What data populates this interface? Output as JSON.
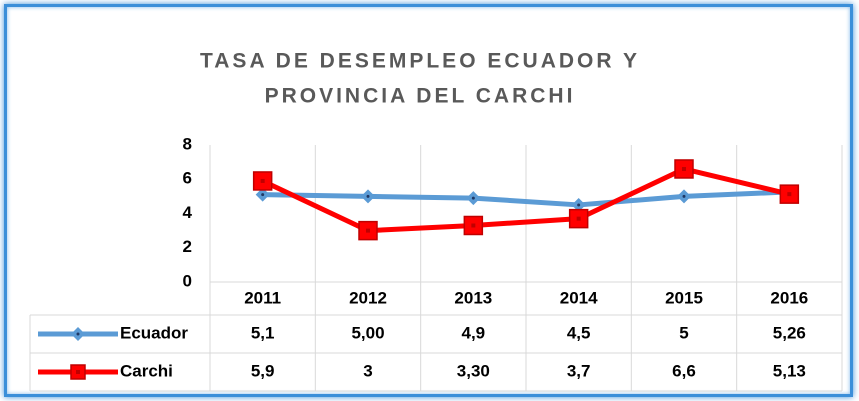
{
  "chart_data": {
    "type": "line",
    "title": [
      "TASA DE DESEMPLEO ECUADOR Y",
      "PROVINCIA DEL CARCHI"
    ],
    "categories": [
      "2011",
      "2012",
      "2013",
      "2014",
      "2015",
      "2016"
    ],
    "series": [
      {
        "name": "Ecuador",
        "color": "#5b9bd5",
        "marker": "diamond",
        "values": [
          5.1,
          5.0,
          4.9,
          4.5,
          5,
          5.26
        ],
        "value_labels": [
          "5,1",
          "5,00",
          "4,9",
          "4,5",
          "5",
          "5,26"
        ]
      },
      {
        "name": "Carchi",
        "color": "#ff0000",
        "marker": "square",
        "values": [
          5.9,
          3,
          3.3,
          3.7,
          6.6,
          5.13
        ],
        "value_labels": [
          "5,9",
          "3",
          "3,30",
          "3,7",
          "6,6",
          "5,13"
        ]
      }
    ],
    "ylim": [
      0,
      8
    ],
    "yticks": [
      0,
      2,
      4,
      6,
      8
    ],
    "grid": true
  }
}
